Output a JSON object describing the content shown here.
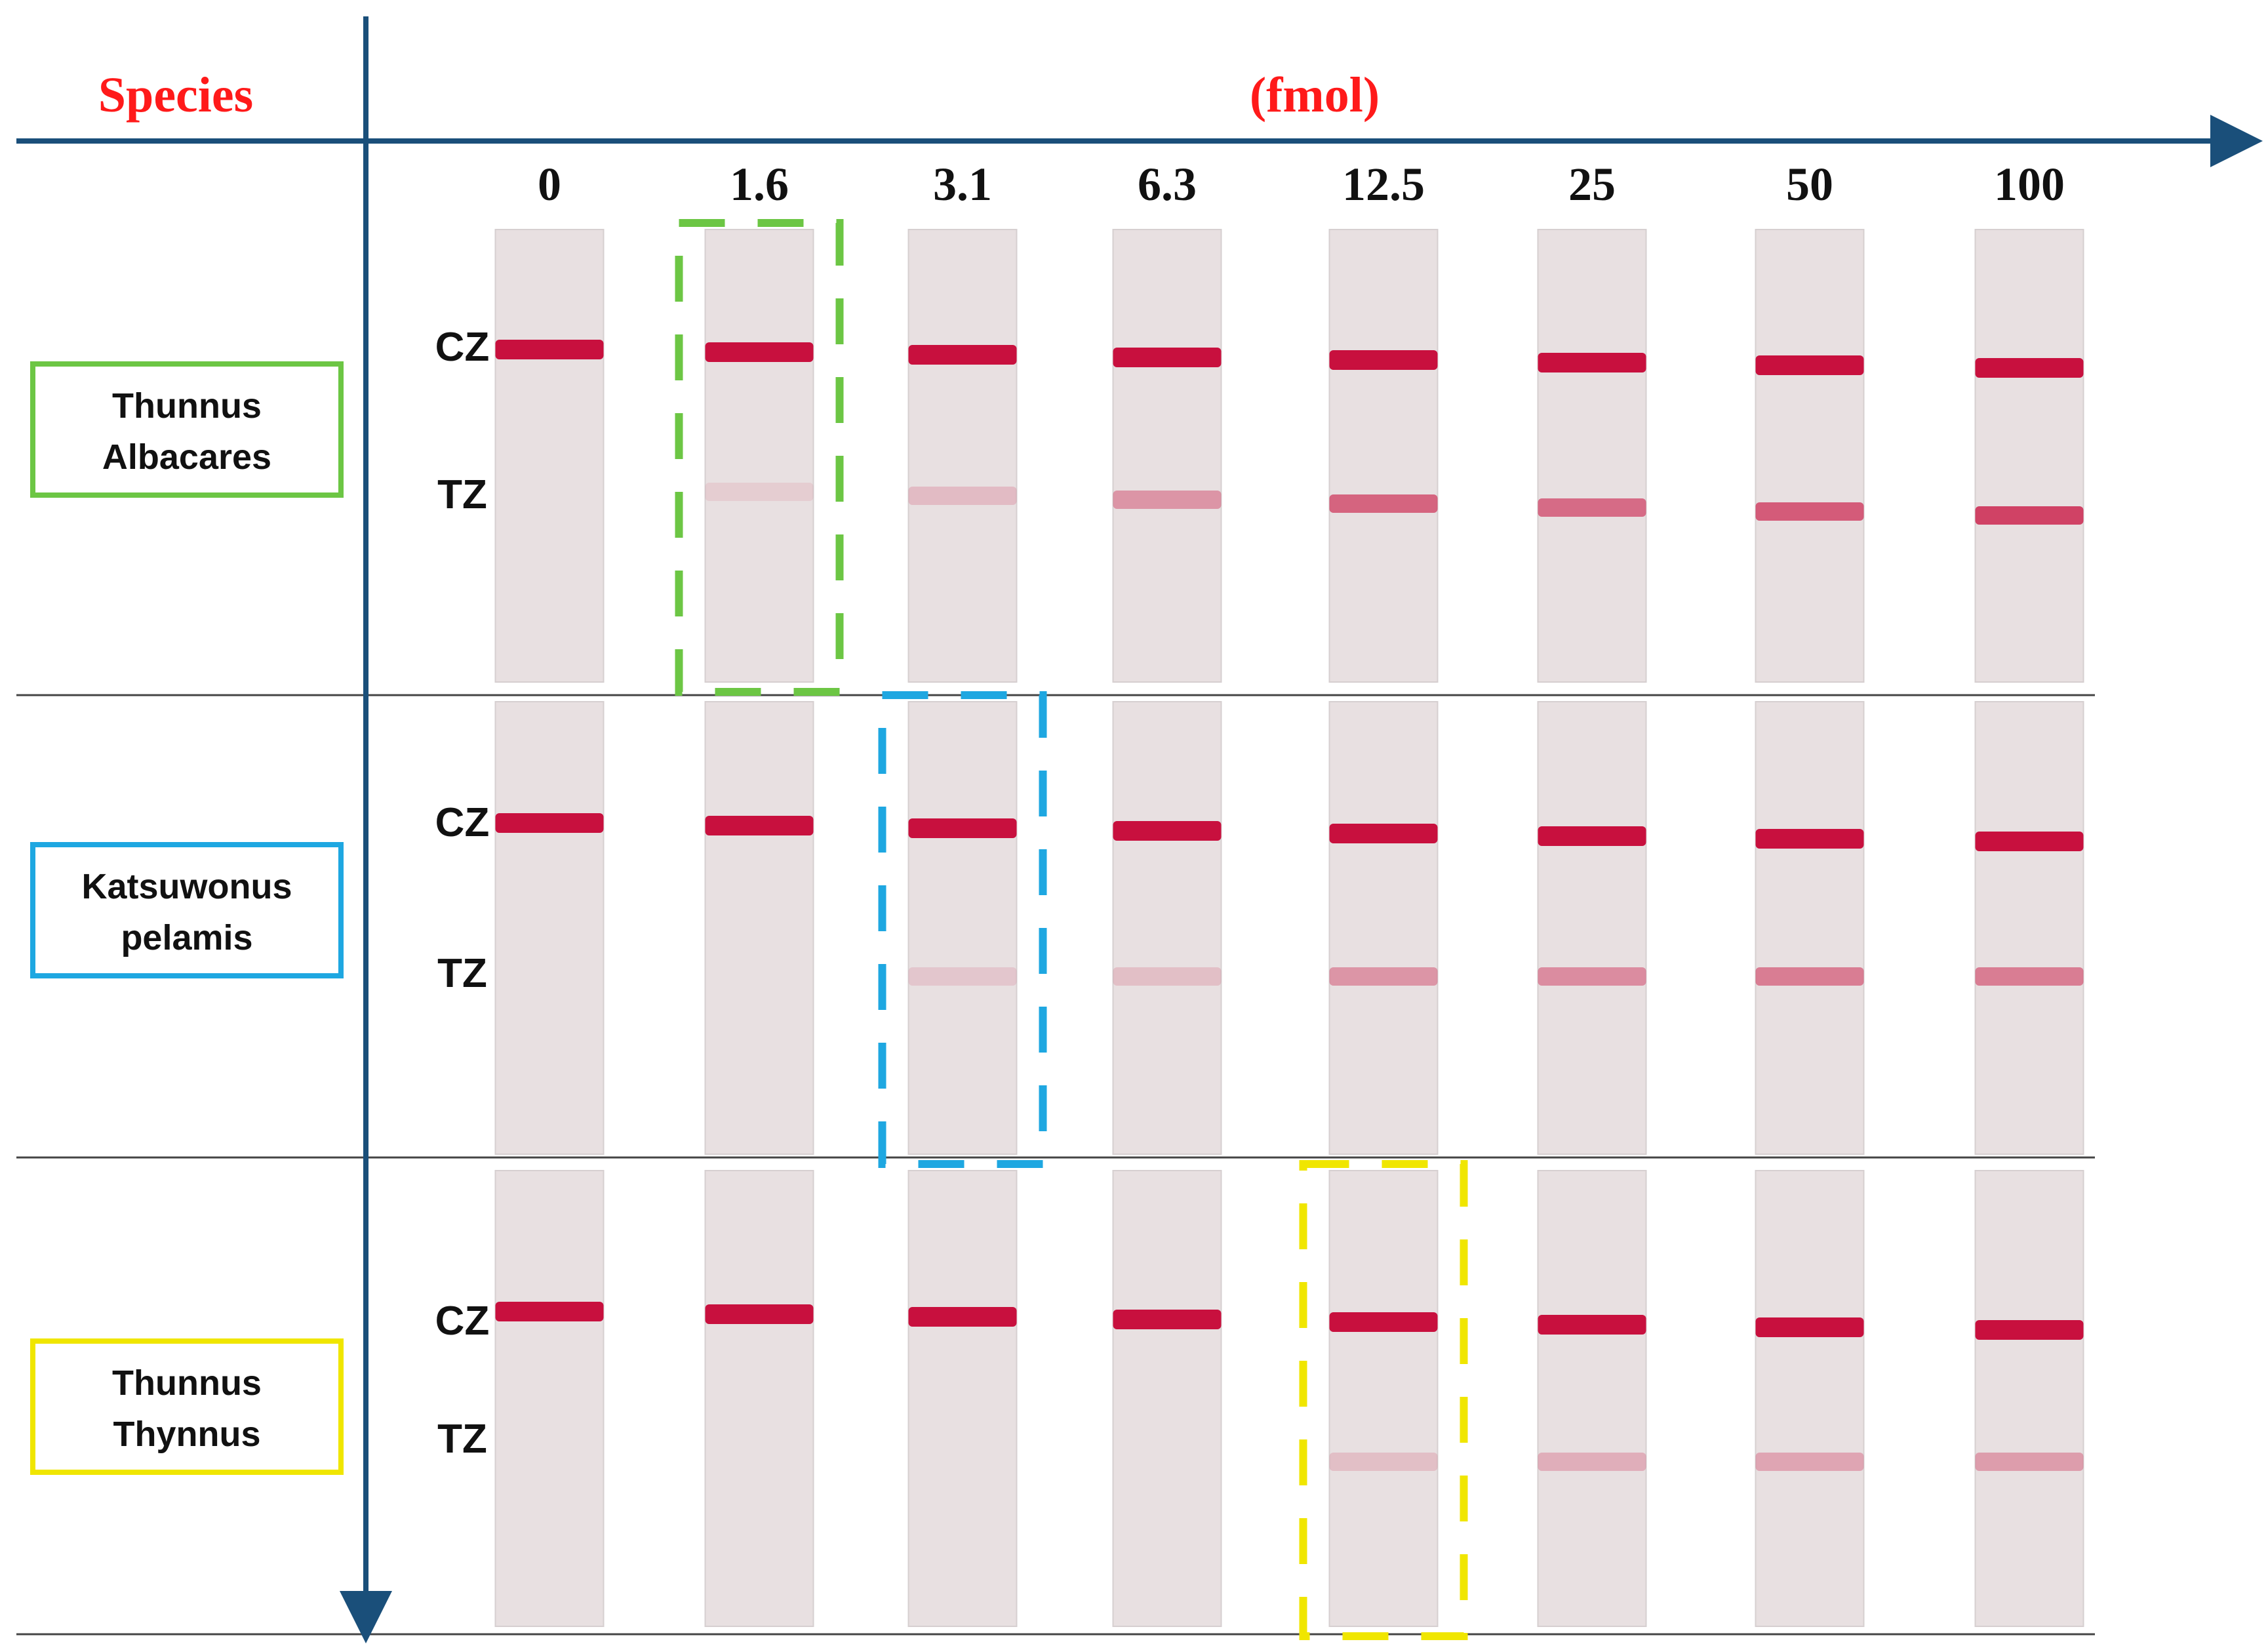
{
  "header": {
    "species_label": "Species",
    "axis_title": "(fmol)"
  },
  "concentrations": [
    "0",
    "1.6",
    "3.1",
    "6.3",
    "12.5",
    "25",
    "50",
    "100"
  ],
  "zone_labels": {
    "control": "CZ",
    "test": "TZ"
  },
  "rows": [
    {
      "species_lines": [
        "Thunnus",
        "Albacares"
      ],
      "box_color": "#6cc644",
      "highlight_index": 1,
      "cz_intensity": [
        1,
        1,
        1,
        1,
        1,
        1,
        1,
        1
      ],
      "tz_intensity": [
        0,
        0.12,
        0.22,
        0.45,
        0.75,
        0.7,
        0.8,
        0.95
      ]
    },
    {
      "species_lines": [
        "Katsuwonus",
        "pelamis"
      ],
      "box_color": "#1ea7e1",
      "highlight_index": 2,
      "cz_intensity": [
        1,
        1,
        1,
        1,
        1,
        1,
        1,
        1
      ],
      "tz_intensity": [
        0,
        0,
        0.15,
        0.2,
        0.45,
        0.5,
        0.6,
        0.6
      ]
    },
    {
      "species_lines": [
        "Thunnus",
        "Thynnus"
      ],
      "box_color": "#f0e600",
      "highlight_index": 4,
      "cz_intensity": [
        1,
        1,
        1,
        1,
        1,
        1,
        1,
        1
      ],
      "tz_intensity": [
        0,
        0,
        0,
        0,
        0.2,
        0.3,
        0.35,
        0.4
      ]
    }
  ],
  "colors": {
    "axis": "#1a4f7a",
    "header_text": "#ff1a1a",
    "band": "#c8103e",
    "strip": "#e8e0e1"
  }
}
